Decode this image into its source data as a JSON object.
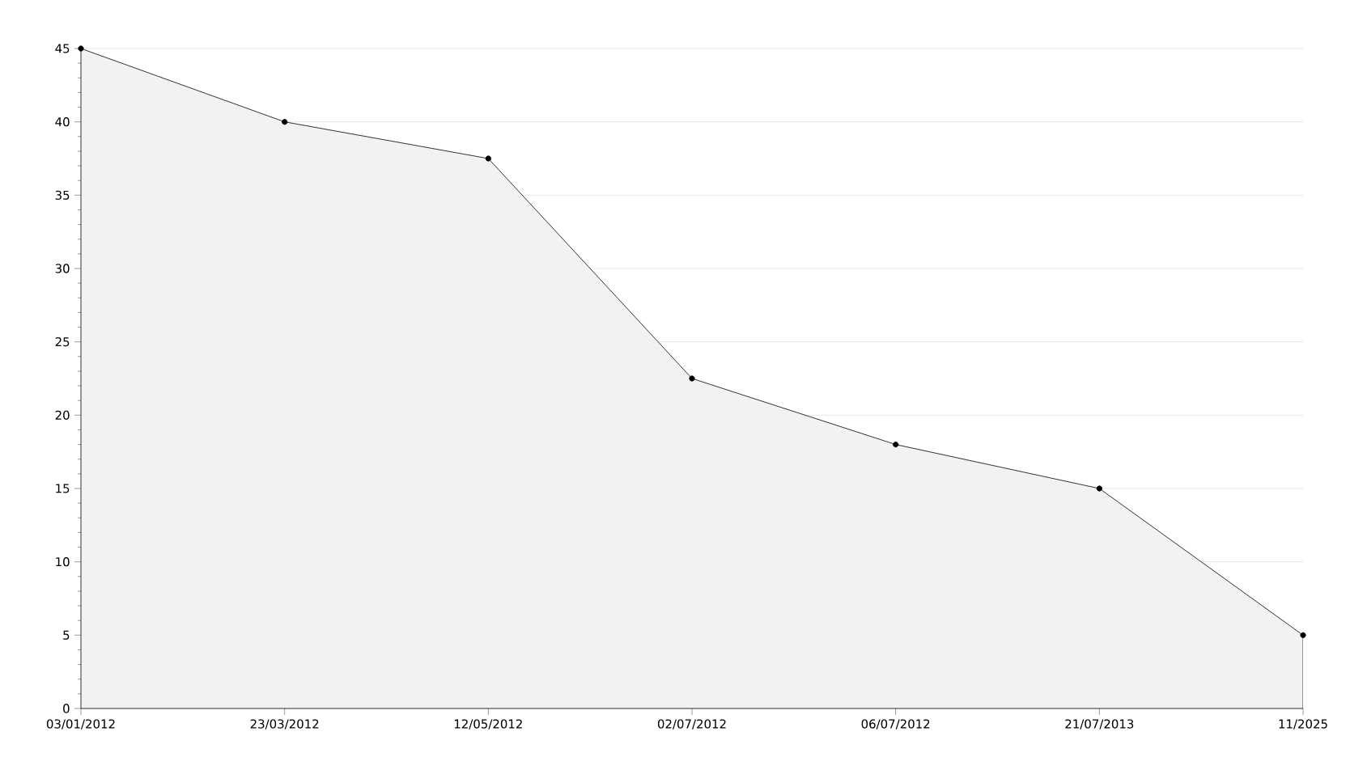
{
  "chart_data": {
    "type": "area",
    "categories": [
      "03/01/2012",
      "23/03/2012",
      "12/05/2012",
      "02/07/2012",
      "06/07/2012",
      "21/07/2013",
      "11/2025"
    ],
    "values": [
      45,
      40,
      37.5,
      22.5,
      18,
      15,
      5
    ],
    "color": "#000000",
    "ylim": [
      0,
      45
    ],
    "yticks": [
      0,
      5,
      10,
      15,
      20,
      25,
      30,
      35,
      40,
      45
    ],
    "grid": "y",
    "marker": "circle"
  }
}
